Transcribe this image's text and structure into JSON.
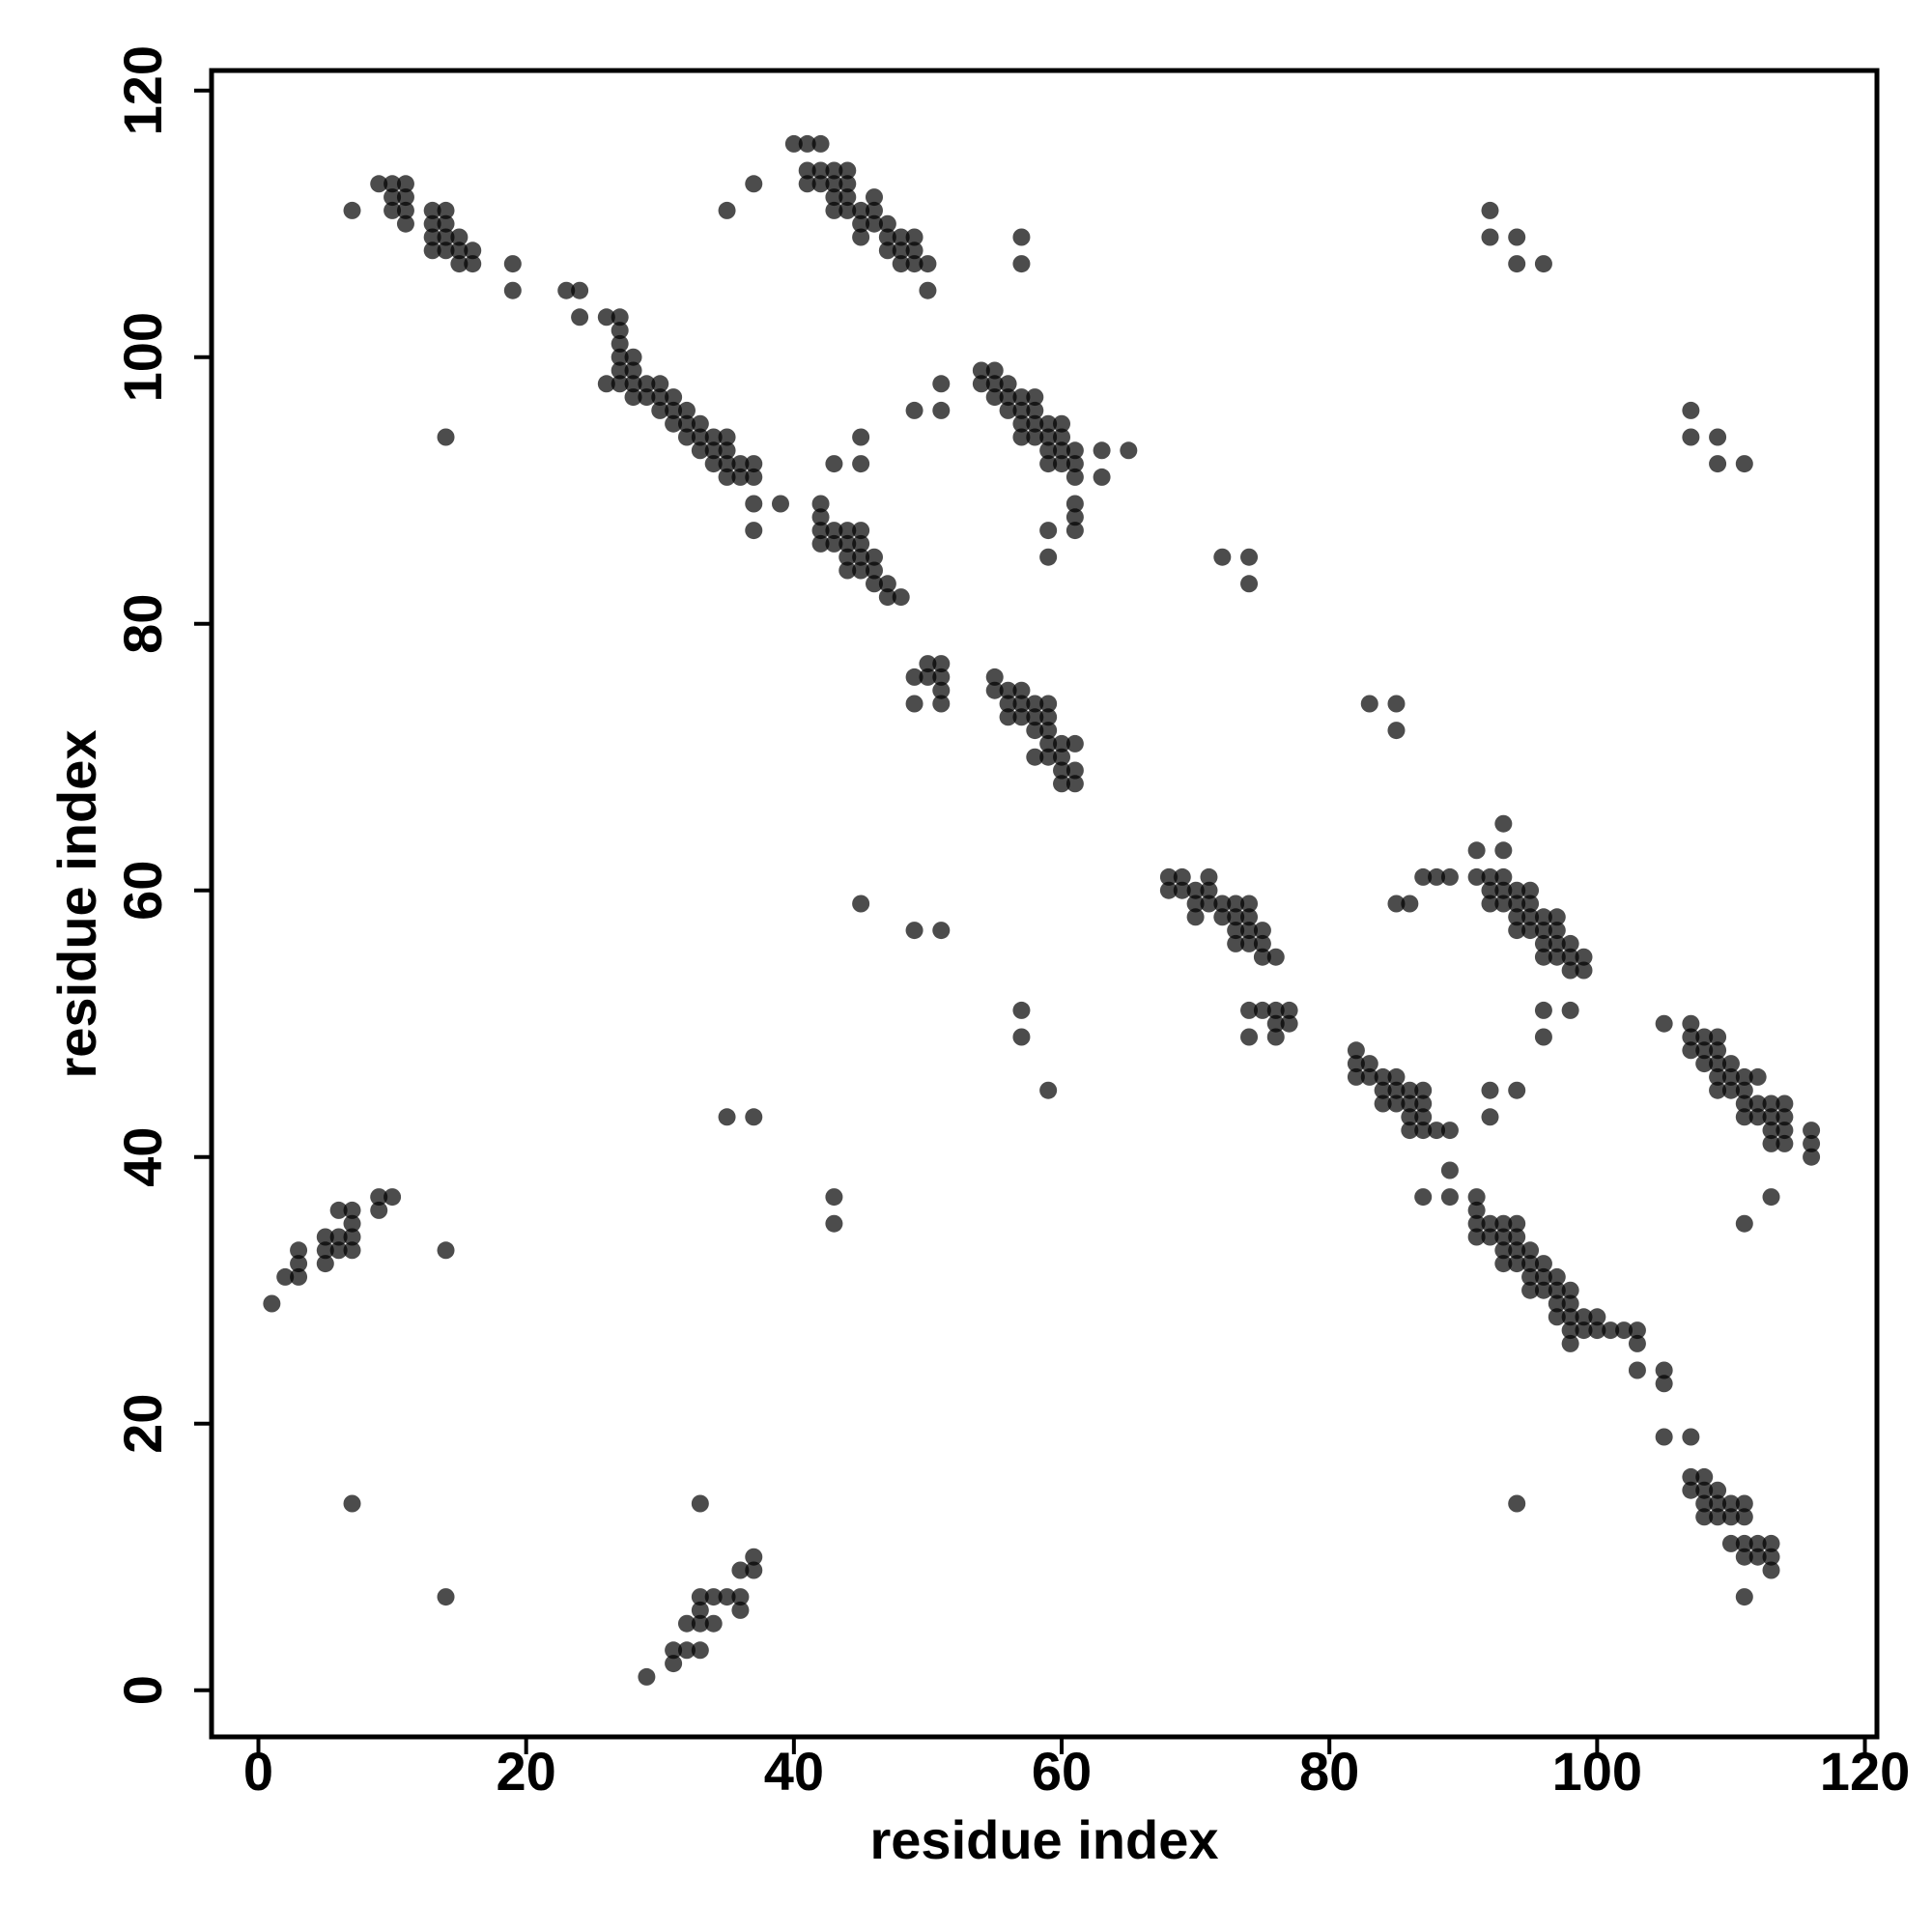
{
  "chart_data": {
    "type": "scatter",
    "xlabel": "residue index",
    "ylabel": "residue index",
    "xlim": [
      -3.5,
      120.9
    ],
    "ylim": [
      -3.5,
      121.5
    ],
    "xticks": [
      0,
      20,
      40,
      60,
      80,
      100,
      120
    ],
    "yticks": [
      0,
      20,
      40,
      60,
      80,
      100,
      120
    ],
    "color": "#000000",
    "alpha": 0.7,
    "grid": false,
    "x": [
      7,
      9,
      10,
      10,
      10,
      11,
      11,
      11,
      11,
      13,
      13,
      13,
      13,
      14,
      14,
      14,
      14,
      15,
      15,
      15,
      16,
      16,
      19,
      19,
      14,
      23,
      24,
      24,
      26,
      27,
      27,
      27,
      27,
      27,
      28,
      28,
      28,
      26,
      27,
      28,
      29,
      29,
      30,
      30,
      30,
      31,
      31,
      31,
      32,
      32,
      32,
      33,
      33,
      33,
      34,
      34,
      34,
      35,
      35,
      35,
      35,
      36,
      36,
      37,
      37,
      37,
      37,
      39,
      35,
      37,
      40,
      41,
      42,
      41,
      41,
      42,
      42,
      43,
      43,
      43,
      43,
      44,
      44,
      44,
      44,
      45,
      45,
      45,
      46,
      46,
      46,
      47,
      47,
      47,
      48,
      48,
      48,
      49,
      49,
      49,
      50,
      50,
      57,
      57,
      43,
      45,
      45,
      49,
      51,
      51,
      42,
      42,
      42,
      42,
      43,
      43,
      44,
      44,
      44,
      44,
      45,
      45,
      45,
      45,
      46,
      46,
      46,
      47,
      47,
      48,
      54,
      55,
      54,
      55,
      55,
      56,
      56,
      56,
      57,
      57,
      57,
      57,
      58,
      58,
      58,
      58,
      59,
      59,
      59,
      59,
      60,
      60,
      60,
      60,
      61,
      61,
      61,
      61,
      61,
      61,
      63,
      63,
      65,
      59,
      59,
      72,
      74,
      74,
      49,
      50,
      51,
      50,
      51,
      51,
      51,
      49,
      55,
      55,
      56,
      56,
      56,
      57,
      57,
      57,
      58,
      58,
      58,
      59,
      59,
      59,
      59,
      58,
      59,
      60,
      60,
      60,
      60,
      61,
      61,
      61,
      83,
      85,
      85,
      92,
      92,
      94,
      94,
      96,
      107,
      107,
      109,
      109,
      111,
      68,
      69,
      68,
      69,
      70,
      70,
      71,
      71,
      71,
      72,
      72,
      73,
      73,
      73,
      73,
      74,
      74,
      74,
      74,
      75,
      75,
      75,
      76,
      74,
      75,
      76,
      77,
      76,
      77,
      76,
      74,
      70,
      45,
      49,
      51,
      57,
      57,
      59,
      35,
      37,
      43,
      43,
      86,
      87,
      88,
      89,
      85,
      91,
      93,
      93,
      91,
      92,
      92,
      92,
      93,
      93,
      93,
      94,
      94,
      94,
      94,
      95,
      95,
      95,
      95,
      96,
      96,
      96,
      96,
      97,
      97,
      97,
      97,
      98,
      98,
      98,
      99,
      99,
      96,
      96,
      98,
      82,
      82,
      82,
      83,
      83,
      84,
      84,
      84,
      85,
      85,
      85,
      86,
      86,
      86,
      86,
      87,
      87,
      87,
      87,
      88,
      89,
      89,
      87,
      89,
      92,
      92,
      94,
      105,
      107,
      107,
      107,
      108,
      108,
      108,
      109,
      109,
      109,
      109,
      109,
      110,
      110,
      110,
      111,
      111,
      111,
      111,
      112,
      112,
      112,
      113,
      113,
      113,
      113,
      114,
      114,
      114,
      114,
      116,
      116,
      116,
      113,
      111,
      91,
      91,
      91,
      91,
      92,
      92,
      93,
      93,
      93,
      93,
      94,
      94,
      94,
      94,
      95,
      95,
      95,
      95,
      96,
      96,
      96,
      97,
      97,
      97,
      97,
      98,
      98,
      98,
      98,
      98,
      99,
      99,
      100,
      100,
      101,
      102,
      103,
      103,
      103,
      105,
      105,
      105,
      107,
      107,
      107,
      108,
      108,
      108,
      108,
      109,
      109,
      109,
      110,
      110,
      110,
      111,
      111,
      111,
      111,
      112,
      112,
      113,
      113,
      113,
      111,
      94,
      1,
      2,
      3,
      3,
      3,
      5,
      5,
      5,
      6,
      6,
      6,
      7,
      7,
      7,
      7,
      9,
      9,
      10,
      14,
      7,
      14,
      29,
      31,
      31,
      32,
      32,
      33,
      33,
      33,
      33,
      33,
      34,
      34,
      35,
      36,
      36,
      36,
      37,
      37
    ],
    "values": [
      111,
      113,
      113,
      112,
      111,
      113,
      112,
      111,
      110,
      111,
      110,
      109,
      108,
      111,
      110,
      109,
      108,
      109,
      108,
      107,
      108,
      107,
      107,
      105,
      94,
      105,
      105,
      103,
      103,
      103,
      102,
      101,
      100,
      99,
      100,
      99,
      98,
      98,
      98,
      97,
      98,
      97,
      98,
      97,
      96,
      97,
      96,
      95,
      96,
      95,
      94,
      95,
      94,
      93,
      94,
      93,
      92,
      94,
      93,
      92,
      91,
      92,
      91,
      92,
      91,
      89,
      87,
      89,
      111,
      113,
      116,
      116,
      116,
      114,
      113,
      114,
      113,
      114,
      113,
      112,
      111,
      114,
      113,
      112,
      111,
      111,
      110,
      109,
      112,
      111,
      110,
      110,
      109,
      108,
      109,
      108,
      107,
      109,
      108,
      107,
      107,
      105,
      109,
      107,
      92,
      94,
      92,
      96,
      98,
      96,
      89,
      88,
      87,
      86,
      87,
      86,
      87,
      86,
      85,
      84,
      87,
      86,
      85,
      84,
      85,
      84,
      83,
      83,
      82,
      82,
      99,
      99,
      98,
      98,
      97,
      98,
      97,
      96,
      97,
      96,
      95,
      94,
      97,
      96,
      95,
      94,
      95,
      94,
      93,
      92,
      95,
      94,
      93,
      92,
      93,
      92,
      91,
      89,
      88,
      87,
      93,
      91,
      93,
      87,
      85,
      85,
      85,
      83,
      76,
      77,
      77,
      76,
      76,
      75,
      74,
      74,
      76,
      75,
      75,
      74,
      73,
      75,
      74,
      73,
      74,
      73,
      72,
      74,
      73,
      72,
      71,
      70,
      70,
      71,
      70,
      69,
      68,
      71,
      69,
      68,
      74,
      74,
      72,
      111,
      109,
      109,
      107,
      107,
      96,
      94,
      94,
      92,
      92,
      61,
      61,
      60,
      60,
      60,
      59,
      61,
      60,
      59,
      59,
      58,
      59,
      58,
      57,
      56,
      59,
      58,
      57,
      56,
      57,
      56,
      55,
      55,
      51,
      51,
      51,
      51,
      50,
      50,
      49,
      49,
      58,
      59,
      57,
      57,
      51,
      49,
      45,
      43,
      43,
      37,
      35,
      59,
      61,
      61,
      61,
      59,
      63,
      65,
      63,
      61,
      61,
      60,
      59,
      61,
      60,
      59,
      60,
      59,
      58,
      57,
      60,
      59,
      58,
      57,
      58,
      57,
      56,
      55,
      58,
      57,
      56,
      55,
      56,
      55,
      54,
      55,
      54,
      51,
      49,
      51,
      48,
      47,
      46,
      47,
      46,
      46,
      45,
      44,
      46,
      45,
      44,
      45,
      44,
      43,
      42,
      45,
      44,
      43,
      42,
      42,
      42,
      39,
      37,
      37,
      45,
      43,
      45,
      50,
      50,
      49,
      48,
      49,
      48,
      47,
      49,
      48,
      47,
      46,
      45,
      47,
      46,
      45,
      46,
      45,
      44,
      43,
      46,
      44,
      43,
      44,
      43,
      42,
      41,
      44,
      43,
      42,
      41,
      42,
      41,
      40,
      37,
      35,
      37,
      36,
      35,
      34,
      35,
      34,
      35,
      34,
      33,
      32,
      35,
      34,
      33,
      32,
      33,
      32,
      31,
      30,
      32,
      31,
      30,
      31,
      30,
      29,
      28,
      30,
      29,
      28,
      27,
      26,
      28,
      27,
      28,
      27,
      27,
      27,
      27,
      26,
      24,
      24,
      23,
      19,
      19,
      16,
      15,
      16,
      15,
      14,
      13,
      15,
      14,
      13,
      14,
      13,
      11,
      14,
      13,
      11,
      10,
      11,
      10,
      11,
      10,
      9,
      7,
      14,
      29,
      31,
      33,
      32,
      31,
      34,
      33,
      32,
      36,
      34,
      33,
      36,
      35,
      34,
      33,
      37,
      36,
      37,
      33,
      14,
      7,
      1,
      3,
      2,
      5,
      3,
      7,
      6,
      5,
      3,
      14,
      7,
      5,
      7,
      7,
      6,
      9,
      10,
      9
    ]
  }
}
